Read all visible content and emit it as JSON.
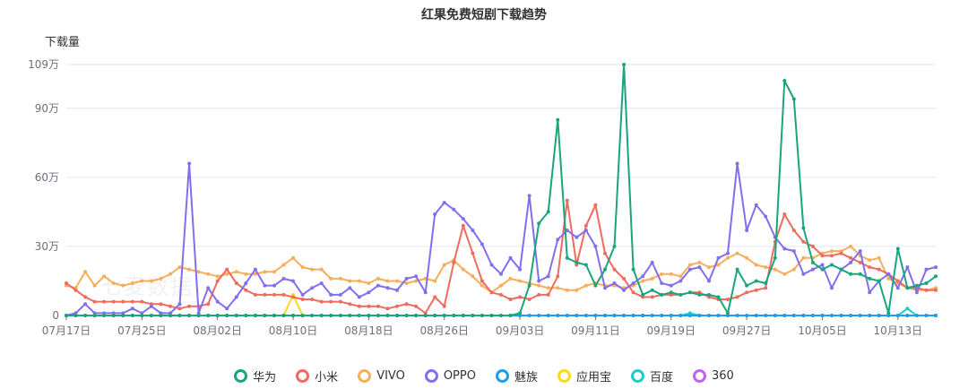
{
  "chart_data": {
    "type": "line",
    "title": "红果免费短剧下载趋势",
    "ylabel": "下载量",
    "watermark": "七麦数据",
    "ylim": [
      0,
      1090000
    ],
    "y_ticks": [
      {
        "value": 0,
        "label": "0"
      },
      {
        "value": 300000,
        "label": "30万"
      },
      {
        "value": 600000,
        "label": "60万"
      },
      {
        "value": 900000,
        "label": "90万"
      },
      {
        "value": 1090000,
        "label": "109万"
      }
    ],
    "x_ticks": [
      "07月17日",
      "07月25日",
      "08月02日",
      "08月10日",
      "08月18日",
      "08月26日",
      "09月03日",
      "09月11日",
      "09月19日",
      "09月27日",
      "10月05日",
      "10月13日"
    ],
    "x_tick_step": 8,
    "n_points": 93,
    "series": [
      {
        "name": "华为",
        "color": "#1aa57d",
        "values": [
          0,
          0,
          0,
          0,
          0,
          0,
          0,
          0,
          0,
          0,
          0,
          0,
          0,
          0,
          0,
          0,
          0,
          0,
          0,
          0,
          0,
          0,
          0,
          0,
          0,
          0,
          0,
          0,
          0,
          0,
          0,
          0,
          0,
          0,
          0,
          0,
          0,
          0,
          0,
          0,
          0,
          0,
          0,
          0,
          0,
          0,
          0,
          0,
          10000,
          130000,
          400000,
          450000,
          850000,
          250000,
          230000,
          220000,
          130000,
          200000,
          300000,
          1090000,
          200000,
          90000,
          110000,
          90000,
          100000,
          90000,
          100000,
          90000,
          90000,
          80000,
          10000,
          200000,
          130000,
          150000,
          140000,
          250000,
          1020000,
          940000,
          380000,
          230000,
          200000,
          220000,
          200000,
          180000,
          180000,
          160000,
          150000,
          10000,
          290000,
          120000,
          130000,
          140000,
          170000
        ]
      },
      {
        "name": "小米",
        "color": "#ee6c5e",
        "values": [
          140000,
          110000,
          80000,
          60000,
          60000,
          60000,
          60000,
          60000,
          60000,
          50000,
          50000,
          40000,
          30000,
          40000,
          40000,
          50000,
          150000,
          200000,
          140000,
          110000,
          90000,
          90000,
          90000,
          90000,
          80000,
          70000,
          70000,
          60000,
          60000,
          60000,
          50000,
          40000,
          40000,
          40000,
          30000,
          40000,
          50000,
          40000,
          10000,
          80000,
          40000,
          230000,
          390000,
          270000,
          150000,
          100000,
          90000,
          70000,
          80000,
          70000,
          90000,
          90000,
          170000,
          500000,
          220000,
          390000,
          480000,
          270000,
          200000,
          160000,
          100000,
          80000,
          80000,
          90000,
          90000,
          90000,
          100000,
          100000,
          80000,
          70000,
          70000,
          80000,
          100000,
          110000,
          120000,
          320000,
          440000,
          370000,
          320000,
          300000,
          260000,
          260000,
          270000,
          250000,
          230000,
          210000,
          200000,
          180000,
          150000,
          120000,
          120000,
          110000,
          110000
        ]
      },
      {
        "name": "VIVO",
        "color": "#f6ae5d",
        "values": [
          130000,
          120000,
          190000,
          130000,
          170000,
          140000,
          130000,
          140000,
          150000,
          150000,
          160000,
          180000,
          210000,
          200000,
          190000,
          180000,
          170000,
          180000,
          190000,
          180000,
          180000,
          190000,
          190000,
          220000,
          250000,
          210000,
          200000,
          200000,
          160000,
          160000,
          150000,
          150000,
          140000,
          160000,
          150000,
          150000,
          140000,
          150000,
          160000,
          150000,
          220000,
          240000,
          200000,
          170000,
          130000,
          100000,
          130000,
          160000,
          150000,
          140000,
          130000,
          120000,
          120000,
          110000,
          110000,
          130000,
          140000,
          130000,
          130000,
          120000,
          130000,
          150000,
          160000,
          180000,
          180000,
          170000,
          220000,
          230000,
          210000,
          220000,
          250000,
          270000,
          250000,
          220000,
          210000,
          200000,
          180000,
          200000,
          250000,
          250000,
          270000,
          280000,
          280000,
          300000,
          260000,
          240000,
          250000,
          160000,
          140000,
          120000,
          110000,
          110000,
          120000
        ]
      },
      {
        "name": "OPPO",
        "color": "#826ff0",
        "values": [
          0,
          10000,
          50000,
          10000,
          10000,
          10000,
          10000,
          30000,
          10000,
          40000,
          10000,
          10000,
          50000,
          660000,
          10000,
          120000,
          60000,
          30000,
          80000,
          140000,
          200000,
          130000,
          130000,
          160000,
          150000,
          90000,
          120000,
          140000,
          90000,
          90000,
          120000,
          80000,
          100000,
          130000,
          120000,
          110000,
          160000,
          170000,
          100000,
          440000,
          490000,
          460000,
          420000,
          370000,
          310000,
          220000,
          180000,
          250000,
          200000,
          520000,
          150000,
          170000,
          330000,
          370000,
          340000,
          370000,
          300000,
          120000,
          140000,
          110000,
          140000,
          170000,
          230000,
          140000,
          130000,
          150000,
          200000,
          210000,
          150000,
          250000,
          270000,
          660000,
          370000,
          480000,
          430000,
          340000,
          290000,
          280000,
          180000,
          200000,
          220000,
          120000,
          200000,
          230000,
          280000,
          100000,
          150000,
          180000,
          120000,
          210000,
          100000,
          200000,
          210000
        ]
      },
      {
        "name": "魅族",
        "color": "#1e9cf0",
        "values": [
          0,
          0,
          0,
          0,
          0,
          0,
          0,
          0,
          0,
          0,
          0,
          0,
          0,
          0,
          0,
          0,
          0,
          0,
          0,
          0,
          0,
          0,
          0,
          0,
          0,
          0,
          0,
          0,
          0,
          0,
          0,
          0,
          0,
          0,
          0,
          0,
          0,
          0,
          0,
          0,
          0,
          0,
          0,
          0,
          0,
          0,
          0,
          0,
          0,
          0,
          0,
          0,
          0,
          0,
          0,
          0,
          0,
          0,
          0,
          0,
          0,
          0,
          0,
          0,
          0,
          0,
          0,
          0,
          0,
          0,
          0,
          0,
          0,
          0,
          0,
          0,
          0,
          0,
          0,
          0,
          0,
          0,
          0,
          0,
          0,
          0,
          0,
          0,
          0,
          0,
          0,
          0,
          0
        ]
      },
      {
        "name": "应用宝",
        "color": "#f6da1d",
        "values": [
          0,
          0,
          0,
          0,
          0,
          0,
          0,
          0,
          0,
          0,
          0,
          0,
          0,
          0,
          0,
          0,
          0,
          0,
          0,
          0,
          0,
          0,
          0,
          0,
          90000,
          0,
          0,
          0,
          0,
          0,
          0,
          0,
          0,
          0,
          0,
          0,
          0,
          0,
          0,
          0,
          0,
          0,
          0,
          0,
          0,
          0,
          0,
          0,
          0,
          0,
          0,
          0,
          0,
          0,
          0,
          0,
          0,
          0,
          0,
          0,
          0,
          0,
          0,
          0,
          0,
          0,
          0,
          0,
          0,
          0,
          0,
          0,
          0,
          0,
          0,
          0,
          0,
          0,
          0,
          0,
          0,
          0,
          0,
          0,
          0,
          0,
          0,
          0,
          0,
          0,
          0,
          0,
          0
        ]
      },
      {
        "name": "百度",
        "color": "#1ecdc3",
        "values": [
          0,
          0,
          0,
          0,
          0,
          0,
          0,
          0,
          0,
          0,
          0,
          0,
          0,
          0,
          0,
          0,
          0,
          0,
          0,
          0,
          0,
          0,
          0,
          0,
          0,
          0,
          0,
          0,
          0,
          0,
          0,
          0,
          0,
          0,
          0,
          0,
          0,
          0,
          0,
          0,
          0,
          0,
          0,
          0,
          0,
          0,
          0,
          0,
          0,
          0,
          0,
          0,
          0,
          0,
          0,
          0,
          0,
          0,
          0,
          0,
          0,
          0,
          0,
          0,
          0,
          0,
          10000,
          0,
          0,
          0,
          0,
          0,
          0,
          0,
          0,
          0,
          0,
          0,
          0,
          0,
          0,
          0,
          0,
          0,
          0,
          0,
          0,
          0,
          0,
          30000,
          0,
          0,
          0
        ]
      },
      {
        "name": "360",
        "color": "#bf61f3",
        "values": [
          0,
          0,
          0,
          0,
          0,
          0,
          0,
          0,
          0,
          0,
          0,
          0,
          0,
          0,
          0,
          0,
          0,
          0,
          0,
          0,
          0,
          0,
          0,
          0,
          0,
          0,
          0,
          0,
          0,
          0,
          0,
          0,
          0,
          0,
          0,
          0,
          0,
          0,
          0,
          0,
          0,
          0,
          0,
          0,
          0,
          0,
          0,
          0,
          0,
          0,
          0,
          0,
          0,
          0,
          0,
          0,
          0,
          0,
          0,
          0,
          0,
          0,
          0,
          0,
          0,
          0,
          0,
          0,
          0,
          0,
          0,
          0,
          0,
          0,
          0,
          0,
          0,
          0,
          0,
          0,
          0,
          0,
          0,
          0,
          0,
          0,
          0,
          0,
          0,
          0,
          0,
          0,
          0
        ]
      }
    ],
    "grid": true,
    "legend_position": "bottom"
  }
}
